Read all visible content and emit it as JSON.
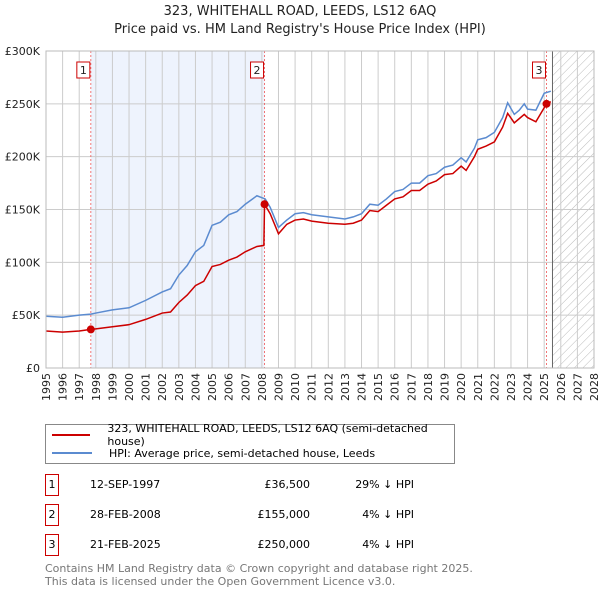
{
  "chart_data": {
    "type": "line",
    "title": "323, WHITEHALL ROAD, LEEDS, LS12 6AQ",
    "subtitle": "Price paid vs. HM Land Registry's House Price Index (HPI)",
    "xlim": [
      1995,
      2028
    ],
    "ylim": [
      0,
      300000
    ],
    "yticks": [
      {
        "v": 0,
        "label": "£0"
      },
      {
        "v": 50000,
        "label": "£50K"
      },
      {
        "v": 100000,
        "label": "£100K"
      },
      {
        "v": 150000,
        "label": "£150K"
      },
      {
        "v": 200000,
        "label": "£200K"
      },
      {
        "v": 250000,
        "label": "£250K"
      },
      {
        "v": 300000,
        "label": "£300K"
      }
    ],
    "xticks": [
      "1995",
      "1996",
      "1997",
      "1998",
      "1999",
      "2000",
      "2001",
      "2002",
      "2003",
      "2004",
      "2005",
      "2006",
      "2007",
      "2008",
      "2009",
      "2010",
      "2011",
      "2012",
      "2013",
      "2014",
      "2015",
      "2016",
      "2017",
      "2018",
      "2019",
      "2020",
      "2021",
      "2022",
      "2023",
      "2024",
      "2025",
      "2026",
      "2027",
      "2028"
    ],
    "shaded_range": [
      1997.7,
      2008.16
    ],
    "forecast_from": 2025.5,
    "grid": true,
    "series": [
      {
        "name": "323, WHITEHALL ROAD, LEEDS, LS12 6AQ (semi-detached house)",
        "color": "#cc0000",
        "x": [
          1995,
          1996,
          1997,
          1997.7,
          1998,
          1999,
          2000,
          2001,
          2002,
          2002.5,
          2003,
          2003.5,
          2004,
          2004.5,
          2005,
          2005.5,
          2006,
          2006.5,
          2007,
          2007.7,
          2008.12,
          2008.16,
          2008.5,
          2009,
          2009.5,
          2010,
          2010.5,
          2011,
          2012,
          2013,
          2013.5,
          2014,
          2014.5,
          2015,
          2015.5,
          2016,
          2016.5,
          2017,
          2017.5,
          2018,
          2018.5,
          2019,
          2019.5,
          2020,
          2020.3,
          2020.8,
          2021,
          2021.5,
          2022,
          2022.5,
          2022.8,
          2023.2,
          2023.5,
          2023.8,
          2024,
          2024.5,
          2025.14,
          2025.4
        ],
        "y": [
          35000,
          34000,
          35000,
          36500,
          37000,
          39000,
          41000,
          46000,
          52000,
          53000,
          62000,
          69000,
          78000,
          82000,
          96000,
          98000,
          102000,
          105000,
          110000,
          115000,
          116000,
          155000,
          146000,
          127000,
          136000,
          140000,
          141000,
          139000,
          137000,
          136000,
          137000,
          140000,
          149000,
          148000,
          154000,
          160000,
          162000,
          168000,
          168000,
          174000,
          177000,
          183000,
          184000,
          191000,
          187000,
          200000,
          207000,
          210000,
          214000,
          228000,
          241000,
          232000,
          236000,
          240000,
          237000,
          233000,
          250000,
          252000
        ]
      },
      {
        "name": "HPI: Average price, semi-detached house, Leeds",
        "color": "#5b8bd0",
        "x": [
          1995,
          1996,
          1997,
          1997.7,
          1998,
          1999,
          2000,
          2001,
          2002,
          2002.5,
          2003,
          2003.5,
          2004,
          2004.5,
          2005,
          2005.5,
          2006,
          2006.5,
          2007,
          2007.7,
          2008.2,
          2008.5,
          2009,
          2009.5,
          2010,
          2010.5,
          2011,
          2012,
          2013,
          2013.5,
          2014,
          2014.5,
          2015,
          2015.5,
          2016,
          2016.5,
          2017,
          2017.5,
          2018,
          2018.5,
          2019,
          2019.5,
          2020,
          2020.3,
          2020.8,
          2021,
          2021.5,
          2022,
          2022.5,
          2022.8,
          2023.2,
          2023.5,
          2023.8,
          2024,
          2024.5,
          2025,
          2025.4
        ],
        "y": [
          49000,
          48000,
          50000,
          51000,
          52000,
          55000,
          57000,
          64000,
          72000,
          75000,
          88000,
          97000,
          110000,
          116000,
          135000,
          138000,
          145000,
          148000,
          155000,
          163000,
          160000,
          152000,
          133000,
          140000,
          146000,
          147000,
          145000,
          143000,
          141000,
          143000,
          146000,
          155000,
          154000,
          160000,
          167000,
          169000,
          175000,
          175000,
          182000,
          184000,
          190000,
          192000,
          199000,
          195000,
          208000,
          216000,
          218000,
          223000,
          237000,
          251000,
          240000,
          244000,
          250000,
          245000,
          244000,
          260000,
          262000
        ]
      }
    ],
    "sales": [
      {
        "label": "1",
        "x": 1997.7,
        "y": 36500
      },
      {
        "label": "2",
        "x": 2008.16,
        "y": 155000
      },
      {
        "label": "3",
        "x": 2025.14,
        "y": 250000
      }
    ]
  },
  "table": [
    {
      "num": "1",
      "date": "12-SEP-1997",
      "price": "£36,500",
      "hpi": "29% ↓ HPI"
    },
    {
      "num": "2",
      "date": "28-FEB-2008",
      "price": "£155,000",
      "hpi": "4% ↓ HPI"
    },
    {
      "num": "3",
      "date": "21-FEB-2025",
      "price": "£250,000",
      "hpi": "4% ↓ HPI"
    }
  ],
  "footer": [
    "Contains HM Land Registry data © Crown copyright and database right 2025.",
    "This data is licensed under the Open Government Licence v3.0."
  ]
}
